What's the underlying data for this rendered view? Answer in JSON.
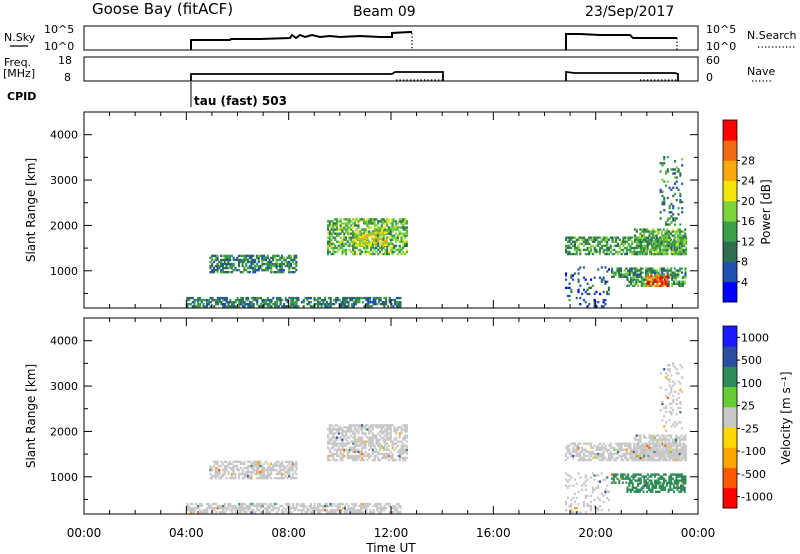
{
  "header": {
    "station": "Goose Bay (fitACF)",
    "beam": "Beam 09",
    "date": "23/Sep/2017"
  },
  "panels": {
    "sky": {
      "left_label": "N.Sky",
      "right_label": "N.Search",
      "left_ticks": [
        "10^5",
        "10^0"
      ],
      "right_ticks": [
        "10^5",
        "10^0"
      ]
    },
    "freq": {
      "left_label_1": "Freq.",
      "left_label_2": "[MHz]",
      "right_label": "Nave",
      "left_ticks": [
        "18",
        "8"
      ],
      "right_ticks": [
        "60",
        "0"
      ]
    },
    "cpid": {
      "label": "CPID",
      "program": "tau (fast) 503"
    }
  },
  "colors": {
    "power": [
      "#0000ff",
      "#1f4fb0",
      "#2e6d4f",
      "#3c9d4a",
      "#7dd33a",
      "#f2e60b",
      "#f9a80d",
      "#f26a0f",
      "#ff0000"
    ],
    "velocity": [
      "#ff0000",
      "#ff5a00",
      "#ffa500",
      "#ffd800",
      "#c8c8c8",
      "#66cc33",
      "#2e8b57",
      "#2b4fa0",
      "#1a1aff"
    ]
  },
  "chart_data": [
    {
      "type": "heatmap",
      "name": "power",
      "ylabel": "Slant Range [km]",
      "ylim": [
        180,
        4500
      ],
      "yticks": [
        "1000",
        "2000",
        "3000",
        "4000"
      ],
      "xlim": [
        0,
        24
      ],
      "xticks": [
        "00:00",
        "04:00",
        "08:00",
        "12:00",
        "16:00",
        "20:00",
        "00:00"
      ],
      "colorbar": {
        "label": "Power [dB]",
        "ticks": [
          "4",
          "8",
          "12",
          "16",
          "20",
          "24",
          "28"
        ],
        "range": [
          0,
          32
        ]
      },
      "regions": [
        {
          "t0": 4.0,
          "t1": 12.4,
          "r0": 200,
          "r1": 420,
          "v": 9
        },
        {
          "t0": 4.9,
          "t1": 8.3,
          "r0": 950,
          "r1": 1350,
          "v": 10
        },
        {
          "t0": 9.5,
          "t1": 12.6,
          "r0": 1350,
          "r1": 2150,
          "v": 14
        },
        {
          "t0": 10.6,
          "t1": 11.8,
          "r0": 1550,
          "r1": 1850,
          "v": 19
        },
        {
          "t0": 18.8,
          "t1": 23.5,
          "r0": 1350,
          "r1": 1750,
          "v": 12
        },
        {
          "t0": 21.5,
          "t1": 23.5,
          "r0": 1350,
          "r1": 1900,
          "v": 13
        },
        {
          "t0": 20.6,
          "t1": 23.5,
          "r0": 850,
          "r1": 1050,
          "v": 11
        },
        {
          "t0": 21.2,
          "t1": 23.5,
          "r0": 650,
          "r1": 850,
          "v": 12
        },
        {
          "t0": 22.0,
          "t1": 22.8,
          "r0": 650,
          "r1": 900,
          "v": 27
        },
        {
          "t0": 22.5,
          "t1": 23.4,
          "r0": 2000,
          "r1": 3500,
          "v": 10
        },
        {
          "t0": 18.8,
          "t1": 20.5,
          "r0": 200,
          "r1": 1100,
          "v": 7
        }
      ]
    },
    {
      "type": "heatmap",
      "name": "velocity",
      "ylabel": "Slant Range [km]",
      "ylim": [
        180,
        4500
      ],
      "yticks": [
        "1000",
        "2000",
        "3000",
        "4000"
      ],
      "xlim": [
        0,
        24
      ],
      "xticks": [
        "00:00",
        "04:00",
        "08:00",
        "12:00",
        "16:00",
        "20:00",
        "00:00"
      ],
      "xlabel": "Time UT",
      "colorbar": {
        "label": "Velocity [m s⁻¹]",
        "ticks": [
          "1000",
          "500",
          "100",
          "25",
          "-25",
          "-100",
          "-500",
          "-1000"
        ]
      },
      "regions": [
        {
          "t0": 4.0,
          "t1": 12.4,
          "r0": 200,
          "r1": 420,
          "v": 0
        },
        {
          "t0": 4.9,
          "t1": 8.3,
          "r0": 950,
          "r1": 1350,
          "v": 0
        },
        {
          "t0": 9.5,
          "t1": 12.6,
          "r0": 1350,
          "r1": 2150,
          "v": 0
        },
        {
          "t0": 18.8,
          "t1": 23.5,
          "r0": 1350,
          "r1": 1750,
          "v": 0
        },
        {
          "t0": 21.5,
          "t1": 23.5,
          "r0": 1350,
          "r1": 1900,
          "v": 0
        },
        {
          "t0": 20.6,
          "t1": 23.5,
          "r0": 850,
          "r1": 1050,
          "v": 120
        },
        {
          "t0": 21.2,
          "t1": 23.5,
          "r0": 650,
          "r1": 850,
          "v": 150
        },
        {
          "t0": 22.5,
          "t1": 23.4,
          "r0": 2000,
          "r1": 3500,
          "v": 0
        },
        {
          "t0": 18.8,
          "t1": 20.5,
          "r0": 200,
          "r1": 1100,
          "v": 0
        }
      ]
    }
  ]
}
